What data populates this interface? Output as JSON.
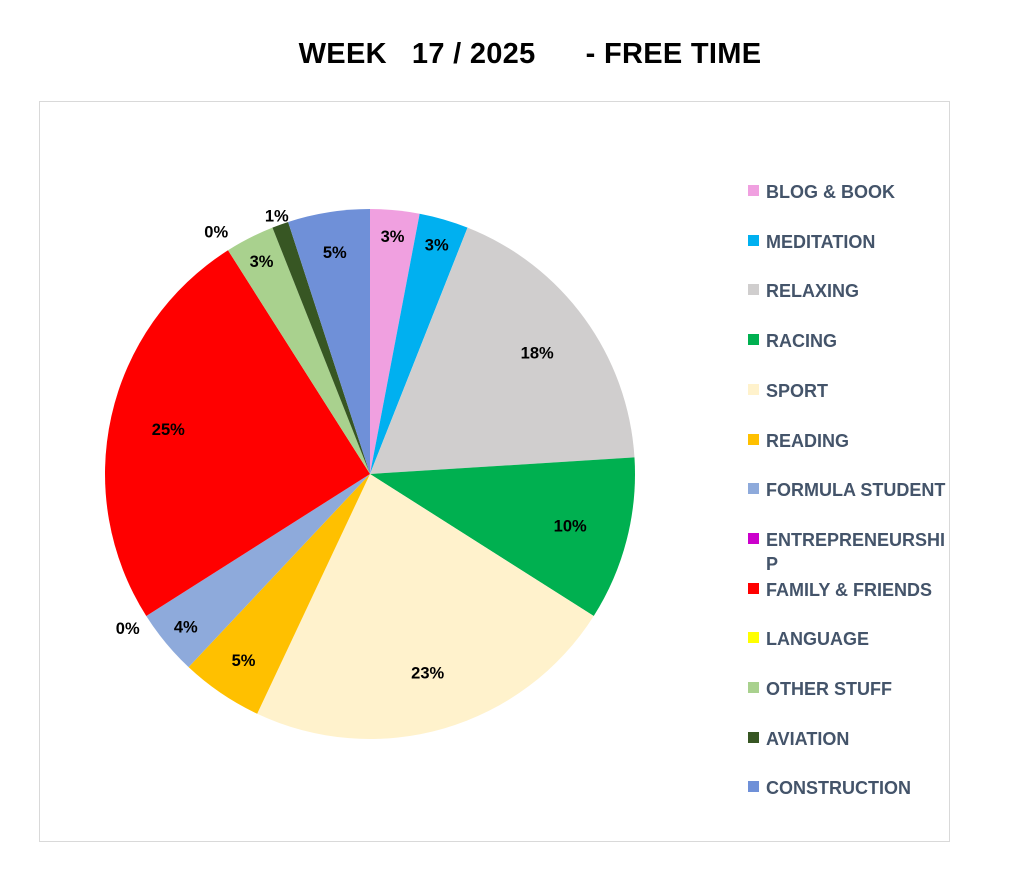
{
  "chart_data": {
    "type": "pie",
    "title": "WEEK   17 / 2025      - FREE TIME",
    "legend_position": "right",
    "series": [
      {
        "name": "BLOG & BOOK",
        "value": 3,
        "label": "3%",
        "color": "#f0a0e0"
      },
      {
        "name": "MEDITATION",
        "value": 3,
        "label": "3%",
        "color": "#00b0f0"
      },
      {
        "name": "RELAXING",
        "value": 18,
        "label": "18%",
        "color": "#d0cece"
      },
      {
        "name": "RACING",
        "value": 10,
        "label": "10%",
        "color": "#00b050"
      },
      {
        "name": "SPORT",
        "value": 23,
        "label": "23%",
        "color": "#fff2cc"
      },
      {
        "name": "READING",
        "value": 5,
        "label": "5%",
        "color": "#ffc000"
      },
      {
        "name": "FORMULA STUDENT",
        "value": 4,
        "label": "4%",
        "color": "#8eaadb"
      },
      {
        "name": "ENTREPRENEURSHIP",
        "value": 0,
        "label": "0%",
        "color": "#cc00cc"
      },
      {
        "name": "FAMILY & FRIENDS",
        "value": 25,
        "label": "25%",
        "color": "#ff0000"
      },
      {
        "name": "LANGUAGE",
        "value": 0,
        "label": "0%",
        "color": "#ffff00"
      },
      {
        "name": "OTHER STUFF",
        "value": 3,
        "label": "3%",
        "color": "#a9d18e"
      },
      {
        "name": "AVIATION",
        "value": 1,
        "label": "1%",
        "color": "#375623"
      },
      {
        "name": "CONSTRUCTION",
        "value": 5,
        "label": "5%",
        "color": "#6f90d8"
      }
    ]
  }
}
